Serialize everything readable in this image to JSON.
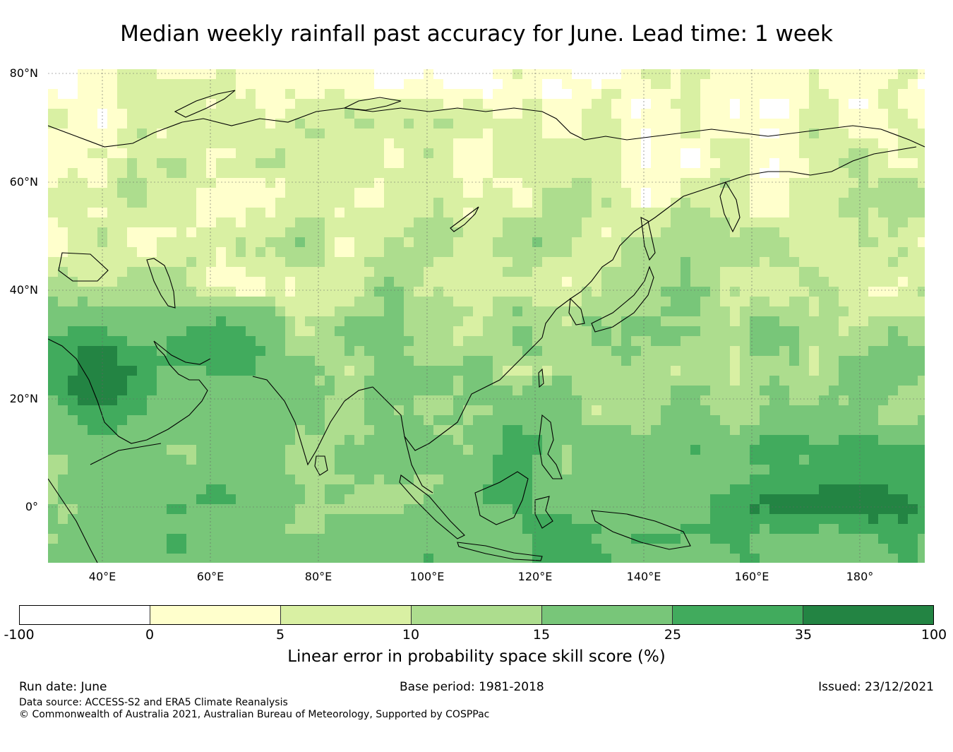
{
  "title": "Median weekly rainfall past accuracy for June. Lead time: 1 week",
  "map": {
    "lat_labels": [
      "80°N",
      "60°N",
      "40°N",
      "20°N",
      "0°"
    ],
    "lon_labels": [
      "40°E",
      "60°E",
      "80°E",
      "100°E",
      "120°E",
      "140°E",
      "160°E",
      "180°"
    ]
  },
  "colorbar": {
    "label": "Linear error in probability space skill score (%)",
    "ticks": [
      "-100",
      "0",
      "5",
      "10",
      "15",
      "25",
      "35",
      "100"
    ],
    "colors": [
      "#ffffff",
      "#ffffcc",
      "#d9f0a3",
      "#addd8e",
      "#78c679",
      "#41ab5d",
      "#238443"
    ]
  },
  "footer": {
    "run_date": "Run date: June",
    "base_period": "Base period: 1981-2018",
    "issued": "Issued: 23/12/2021",
    "data_source": "Data source: ACCESS-S2 and ERA5 Climate Reanalysis",
    "copyright": "© Commonwealth of Australia 2021, Australian Bureau of Meteorology, Supported by COSPPac"
  }
}
